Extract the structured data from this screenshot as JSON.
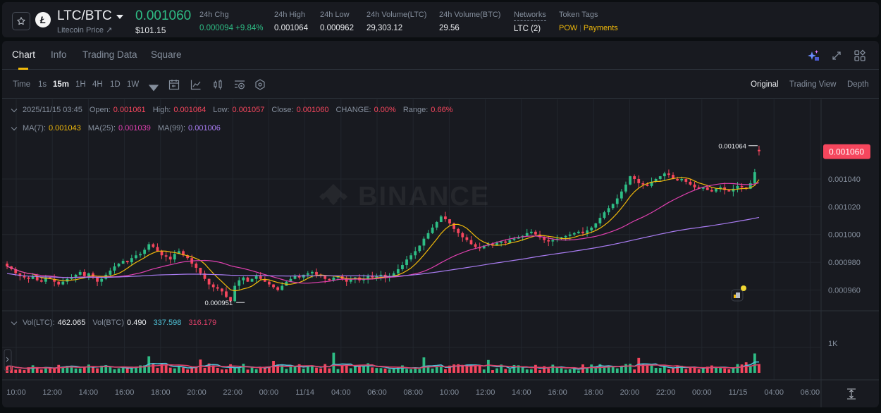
{
  "ticker": {
    "pair": "LTC/BTC",
    "coin_logo_glyph": "Ł",
    "subtitle": "Litecoin Price ↗",
    "last_price": "0.001060",
    "fiat_price": "$101.15",
    "stats": [
      {
        "label": "24h Chg",
        "value": "0.000094 +9.84%",
        "color": "green"
      },
      {
        "label": "24h High",
        "value": "0.001064"
      },
      {
        "label": "24h Low",
        "value": "0.000962"
      },
      {
        "label": "24h Volume(LTC)",
        "value": "29,303.12"
      },
      {
        "label": "24h Volume(BTC)",
        "value": "29.56"
      },
      {
        "label": "Networks",
        "value": "LTC (2)"
      },
      {
        "label": "Token Tags",
        "tags": [
          "POW",
          "Payments"
        ]
      }
    ]
  },
  "tabs": [
    {
      "label": "Chart",
      "active": true
    },
    {
      "label": "Info"
    },
    {
      "label": "Trading Data"
    },
    {
      "label": "Square"
    }
  ],
  "toolbar": {
    "time_label": "Time",
    "intervals": [
      "1s",
      "15m",
      "1H",
      "4H",
      "1D",
      "1W"
    ],
    "active_interval": "15m",
    "icons": [
      "calendar-icon",
      "indicator-icon",
      "candle-type-icon",
      "chart-settings-icon",
      "hexagon-settings-icon"
    ],
    "views": [
      "Original",
      "Trading View",
      "Depth"
    ],
    "active_view": "Original"
  },
  "ohlc_legend": {
    "datetime": "2025/11/15 03:45",
    "open_label": "Open:",
    "open": "0.001061",
    "high_label": "High:",
    "high": "0.001064",
    "low_label": "Low:",
    "low": "0.001057",
    "close_label": "Close:",
    "close": "0.001060",
    "change_label": "CHANGE:",
    "change": "0.00%",
    "range_label": "Range:",
    "range": "0.66%"
  },
  "ma_legend": {
    "ma7_label": "MA(7):",
    "ma7": "0.001043",
    "ma25_label": "MA(25):",
    "ma25": "0.001039",
    "ma99_label": "MA(99):",
    "ma99": "0.001006"
  },
  "vol_legend": {
    "vol_ltc_label": "Vol(LTC):",
    "vol_ltc": "462.065",
    "vol_btc_label": "Vol(BTC)",
    "vol_btc": "0.490",
    "ma5": "337.598",
    "ma10": "316.179"
  },
  "annotations": {
    "high_marker": "0.001064",
    "low_marker": "0.000951",
    "current_price_badge": "0.001060",
    "watermark": "BINANCE"
  },
  "colors": {
    "up": "#2ebd85",
    "down": "#f6465d",
    "ma7": "#f0b90b",
    "ma25": "#e040b0",
    "ma99": "#a97cf2",
    "vol_ma5": "#4fc3d9",
    "vol_ma10": "#e0406a",
    "accent": "#f0b90b"
  },
  "chart_data": {
    "type": "candlestick",
    "title": "LTC/BTC 15m",
    "y_axis": {
      "ticks": [
        "0.001040",
        "0.001020",
        "0.001000",
        "0.000980",
        "0.000960"
      ],
      "range": [
        0.000945,
        0.001072
      ]
    },
    "x_axis": {
      "ticks": [
        "10:00",
        "12:00",
        "14:00",
        "16:00",
        "18:00",
        "20:00",
        "22:00",
        "00:00",
        "11/14",
        "04:00",
        "06:00",
        "08:00",
        "10:00",
        "12:00",
        "14:00",
        "16:00",
        "18:00",
        "20:00",
        "22:00",
        "00:00",
        "11/15",
        "04:00",
        "06:00"
      ]
    },
    "volume_axis": {
      "ticks": [
        "1K"
      ]
    },
    "close_series": [
      0.000977,
      0.000975,
      0.000972,
      0.00097,
      0.000969,
      0.000968,
      0.00097,
      0.000967,
      0.000966,
      0.000969,
      0.000968,
      0.000966,
      0.000964,
      0.000966,
      0.000968,
      0.000969,
      0.000971,
      0.000973,
      0.00097,
      0.000972,
      0.000969,
      0.000966,
      0.000968,
      0.000971,
      0.000974,
      0.000977,
      0.000979,
      0.000981,
      0.00098,
      0.000983,
      0.000985,
      0.000986,
      0.000989,
      0.000993,
      0.000991,
      0.000988,
      0.000985,
      0.000984,
      0.000982,
      0.000986,
      0.000988,
      0.000985,
      0.000983,
      0.000979,
      0.000976,
      0.000972,
      0.000968,
      0.000964,
      0.000962,
      0.000961,
      0.000959,
      0.000955,
      0.000952,
      0.000963,
      0.000967,
      0.000969,
      0.000966,
      0.000968,
      0.00097,
      0.000968,
      0.000966,
      0.000964,
      0.000962,
      0.00096,
      0.000963,
      0.000966,
      0.000968,
      0.00097,
      0.000969,
      0.000971,
      0.000972,
      0.000973,
      0.000971,
      0.00097,
      0.000968,
      0.000967,
      0.000969,
      0.00097,
      0.000968,
      0.000966,
      0.000968,
      0.000969,
      0.000967,
      0.000968,
      0.00097,
      0.000969,
      0.00097,
      0.000971,
      0.000969,
      0.00097,
      0.000972,
      0.000975,
      0.000978,
      0.000982,
      0.000985,
      0.000988,
      0.000992,
      0.000997,
      0.001001,
      0.001005,
      0.001009,
      0.001013,
      0.001011,
      0.001008,
      0.001004,
      0.001001,
      0.000998,
      0.000996,
      0.000993,
      0.000991,
      0.00099,
      0.000992,
      0.000993,
      0.000992,
      0.000994,
      0.000995,
      0.000994,
      0.000996,
      0.000997,
      0.000998,
      0.000999,
      0.001001,
      0.001002,
      0.001,
      0.000998,
      0.000996,
      0.000995,
      0.000996,
      0.000997,
      0.000998,
      0.000999,
      0.001,
      0.001001,
      0.001002,
      0.001001,
      0.001003,
      0.001005,
      0.001008,
      0.001012,
      0.001016,
      0.001019,
      0.001022,
      0.001026,
      0.001031,
      0.001036,
      0.001042,
      0.00104,
      0.001037,
      0.001036,
      0.001035,
      0.001038,
      0.00104,
      0.001042,
      0.001044,
      0.001043,
      0.00104,
      0.001039,
      0.00104,
      0.001038,
      0.001036,
      0.001034,
      0.001033,
      0.001034,
      0.001032,
      0.001031,
      0.001033,
      0.001034,
      0.001032,
      0.001031,
      0.001033,
      0.001035,
      0.001034,
      0.001033,
      0.001037,
      0.001045,
      0.00106
    ],
    "ma_series": [
      {
        "name": "MA(7)",
        "last": 0.001043
      },
      {
        "name": "MA(25)",
        "last": 0.001039
      },
      {
        "name": "MA(99)",
        "last": 0.001006
      }
    ],
    "last_candle": {
      "open": 0.001061,
      "high": 0.001064,
      "low": 0.001057,
      "close": 0.00106
    },
    "period_high": 0.001064,
    "period_low": 0.000951,
    "grid": true
  }
}
